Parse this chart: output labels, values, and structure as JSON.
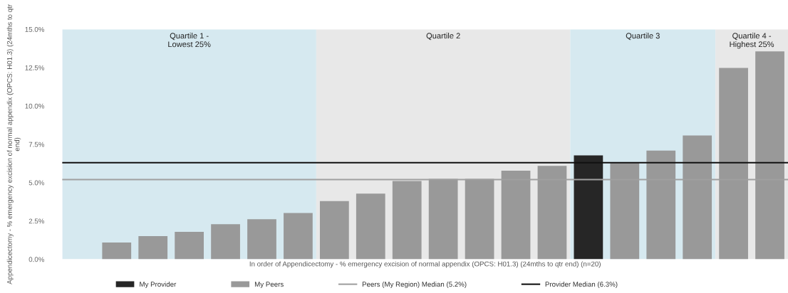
{
  "chart_data": {
    "type": "bar",
    "xlabel": "In order of Appendicectomy - % emergency excision of normal appendix (OPCS: H01.3) (24mths to qtr end) (n=20)",
    "ylabel": "Appendicectomy - % emergency excision of normal appendix (OPCS: H01.3) (24mths to qtr end)",
    "categories": [
      null,
      null,
      null,
      null,
      null,
      null,
      null,
      null,
      null,
      null,
      null,
      null,
      null,
      null,
      null,
      null,
      null,
      null,
      null,
      null
    ],
    "stacked": true,
    "series": [
      {
        "name": "My Provider",
        "color": "#262626",
        "values": [
          null,
          null,
          null,
          null,
          null,
          null,
          null,
          null,
          null,
          null,
          null,
          null,
          null,
          null,
          6.78,
          null,
          null,
          null,
          null,
          null
        ]
      },
      {
        "name": "My Peers",
        "color": "#999999",
        "values": [
          0,
          1.09,
          1.51,
          1.79,
          2.29,
          2.62,
          3.02,
          3.8,
          4.28,
          5.11,
          5.25,
          5.25,
          5.78,
          6.09,
          null,
          6.34,
          7.09,
          8.08,
          12.48,
          13.56
        ]
      }
    ],
    "ylim": [
      0,
      15
    ],
    "yticks": [
      {
        "value": 0,
        "label": "0.0%"
      },
      {
        "value": 2.5,
        "label": "2.5%"
      },
      {
        "value": 5,
        "label": "5.0%"
      },
      {
        "value": 7.5,
        "label": "7.5%"
      },
      {
        "value": 10,
        "label": "10.0%"
      },
      {
        "value": 12.5,
        "label": "12.5%"
      },
      {
        "value": 15,
        "label": "15.0%"
      }
    ],
    "tick_labels": "y",
    "annotations": [
      "Quartile 1 -\nLowest 25%",
      "Quartile 2",
      "Quartile 3",
      "Quartile 4 -\nHighest 25%"
    ],
    "ref_lines": [
      {
        "axis": "y",
        "value": 5.2,
        "label": "Peers (My Region) Median (5.2%)",
        "color": "#a0a0a0",
        "line_style": "solid"
      },
      {
        "axis": "y",
        "value": 6.3,
        "label": "Provider Median (6.3%)",
        "color": "#111111",
        "line_style": "solid"
      }
    ],
    "grid": false,
    "legend": "bottom"
  }
}
